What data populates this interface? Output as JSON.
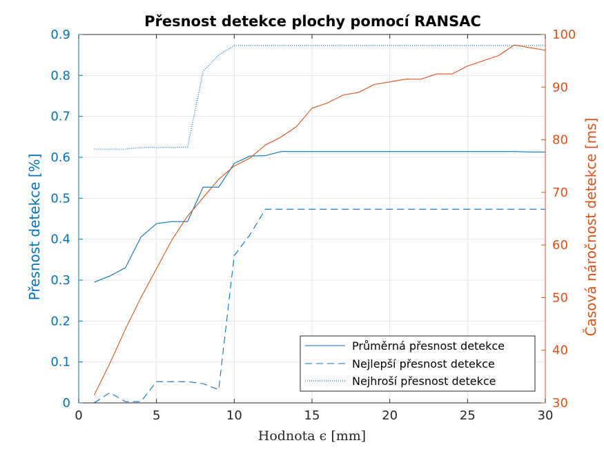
{
  "chart_data": {
    "type": "line",
    "title": "Přesnost detekce plochy pomocí RANSAC",
    "xlabel": "Hodnota ϵ [mm]",
    "ylabel_left": "Přesnost detekce [%]",
    "ylabel_right": "Časová náročnost detekce [ms]",
    "xlim": [
      0,
      30
    ],
    "ylim_left": [
      0,
      0.9
    ],
    "ylim_right": [
      30,
      100
    ],
    "xticks": [
      0,
      5,
      10,
      15,
      20,
      25,
      30
    ],
    "yticks_left": [
      0,
      0.1,
      0.2,
      0.3,
      0.4,
      0.5,
      0.6,
      0.7,
      0.8,
      0.9
    ],
    "yticks_right": [
      30,
      40,
      50,
      60,
      70,
      80,
      90,
      100
    ],
    "grid": true,
    "legend_position": "bottom-right",
    "colors": {
      "left_axis": "#0072bd",
      "right_axis": "#d95319",
      "grid": "#e6e6e6",
      "axes": "#262626"
    },
    "x": [
      1,
      2,
      3,
      4,
      5,
      6,
      7,
      8,
      9,
      10,
      11,
      12,
      13,
      14,
      15,
      16,
      17,
      18,
      19,
      20,
      21,
      22,
      23,
      24,
      25,
      26,
      27,
      28,
      29,
      30
    ],
    "series": [
      {
        "name": "Průměrná přesnost detekce",
        "axis": "left",
        "style": "solid",
        "values": [
          0.295,
          0.31,
          0.33,
          0.405,
          0.438,
          0.443,
          0.443,
          0.527,
          0.527,
          0.585,
          0.603,
          0.604,
          0.614,
          0.614,
          0.614,
          0.614,
          0.614,
          0.614,
          0.614,
          0.614,
          0.614,
          0.614,
          0.614,
          0.614,
          0.614,
          0.614,
          0.614,
          0.614,
          0.613,
          0.613
        ]
      },
      {
        "name": "Nejlepší přesnost detekce",
        "axis": "left",
        "style": "dashed",
        "values": [
          0.0,
          0.025,
          0.003,
          0.003,
          0.052,
          0.052,
          0.052,
          0.047,
          0.032,
          0.36,
          0.41,
          0.473,
          0.473,
          0.473,
          0.473,
          0.473,
          0.473,
          0.473,
          0.473,
          0.473,
          0.473,
          0.473,
          0.473,
          0.473,
          0.473,
          0.473,
          0.473,
          0.473,
          0.473,
          0.473
        ]
      },
      {
        "name": "Nejhroší přesnost detekce",
        "axis": "left",
        "style": "dotted",
        "values": [
          0.62,
          0.62,
          0.62,
          0.624,
          0.624,
          0.624,
          0.625,
          0.81,
          0.85,
          0.873,
          0.873,
          0.873,
          0.873,
          0.873,
          0.873,
          0.873,
          0.873,
          0.873,
          0.873,
          0.873,
          0.873,
          0.873,
          0.873,
          0.873,
          0.873,
          0.873,
          0.873,
          0.873,
          0.873,
          0.873
        ]
      },
      {
        "name": "",
        "axis": "right",
        "style": "solid",
        "values": [
          31.5,
          37.5,
          44,
          50,
          55.5,
          61,
          65.5,
          69,
          72.5,
          75,
          76.5,
          79,
          80.5,
          82.5,
          86,
          87,
          88.5,
          89,
          90.5,
          91,
          91.5,
          91.5,
          92.5,
          92.5,
          94,
          95,
          96,
          98,
          97.5,
          97
        ]
      }
    ]
  }
}
